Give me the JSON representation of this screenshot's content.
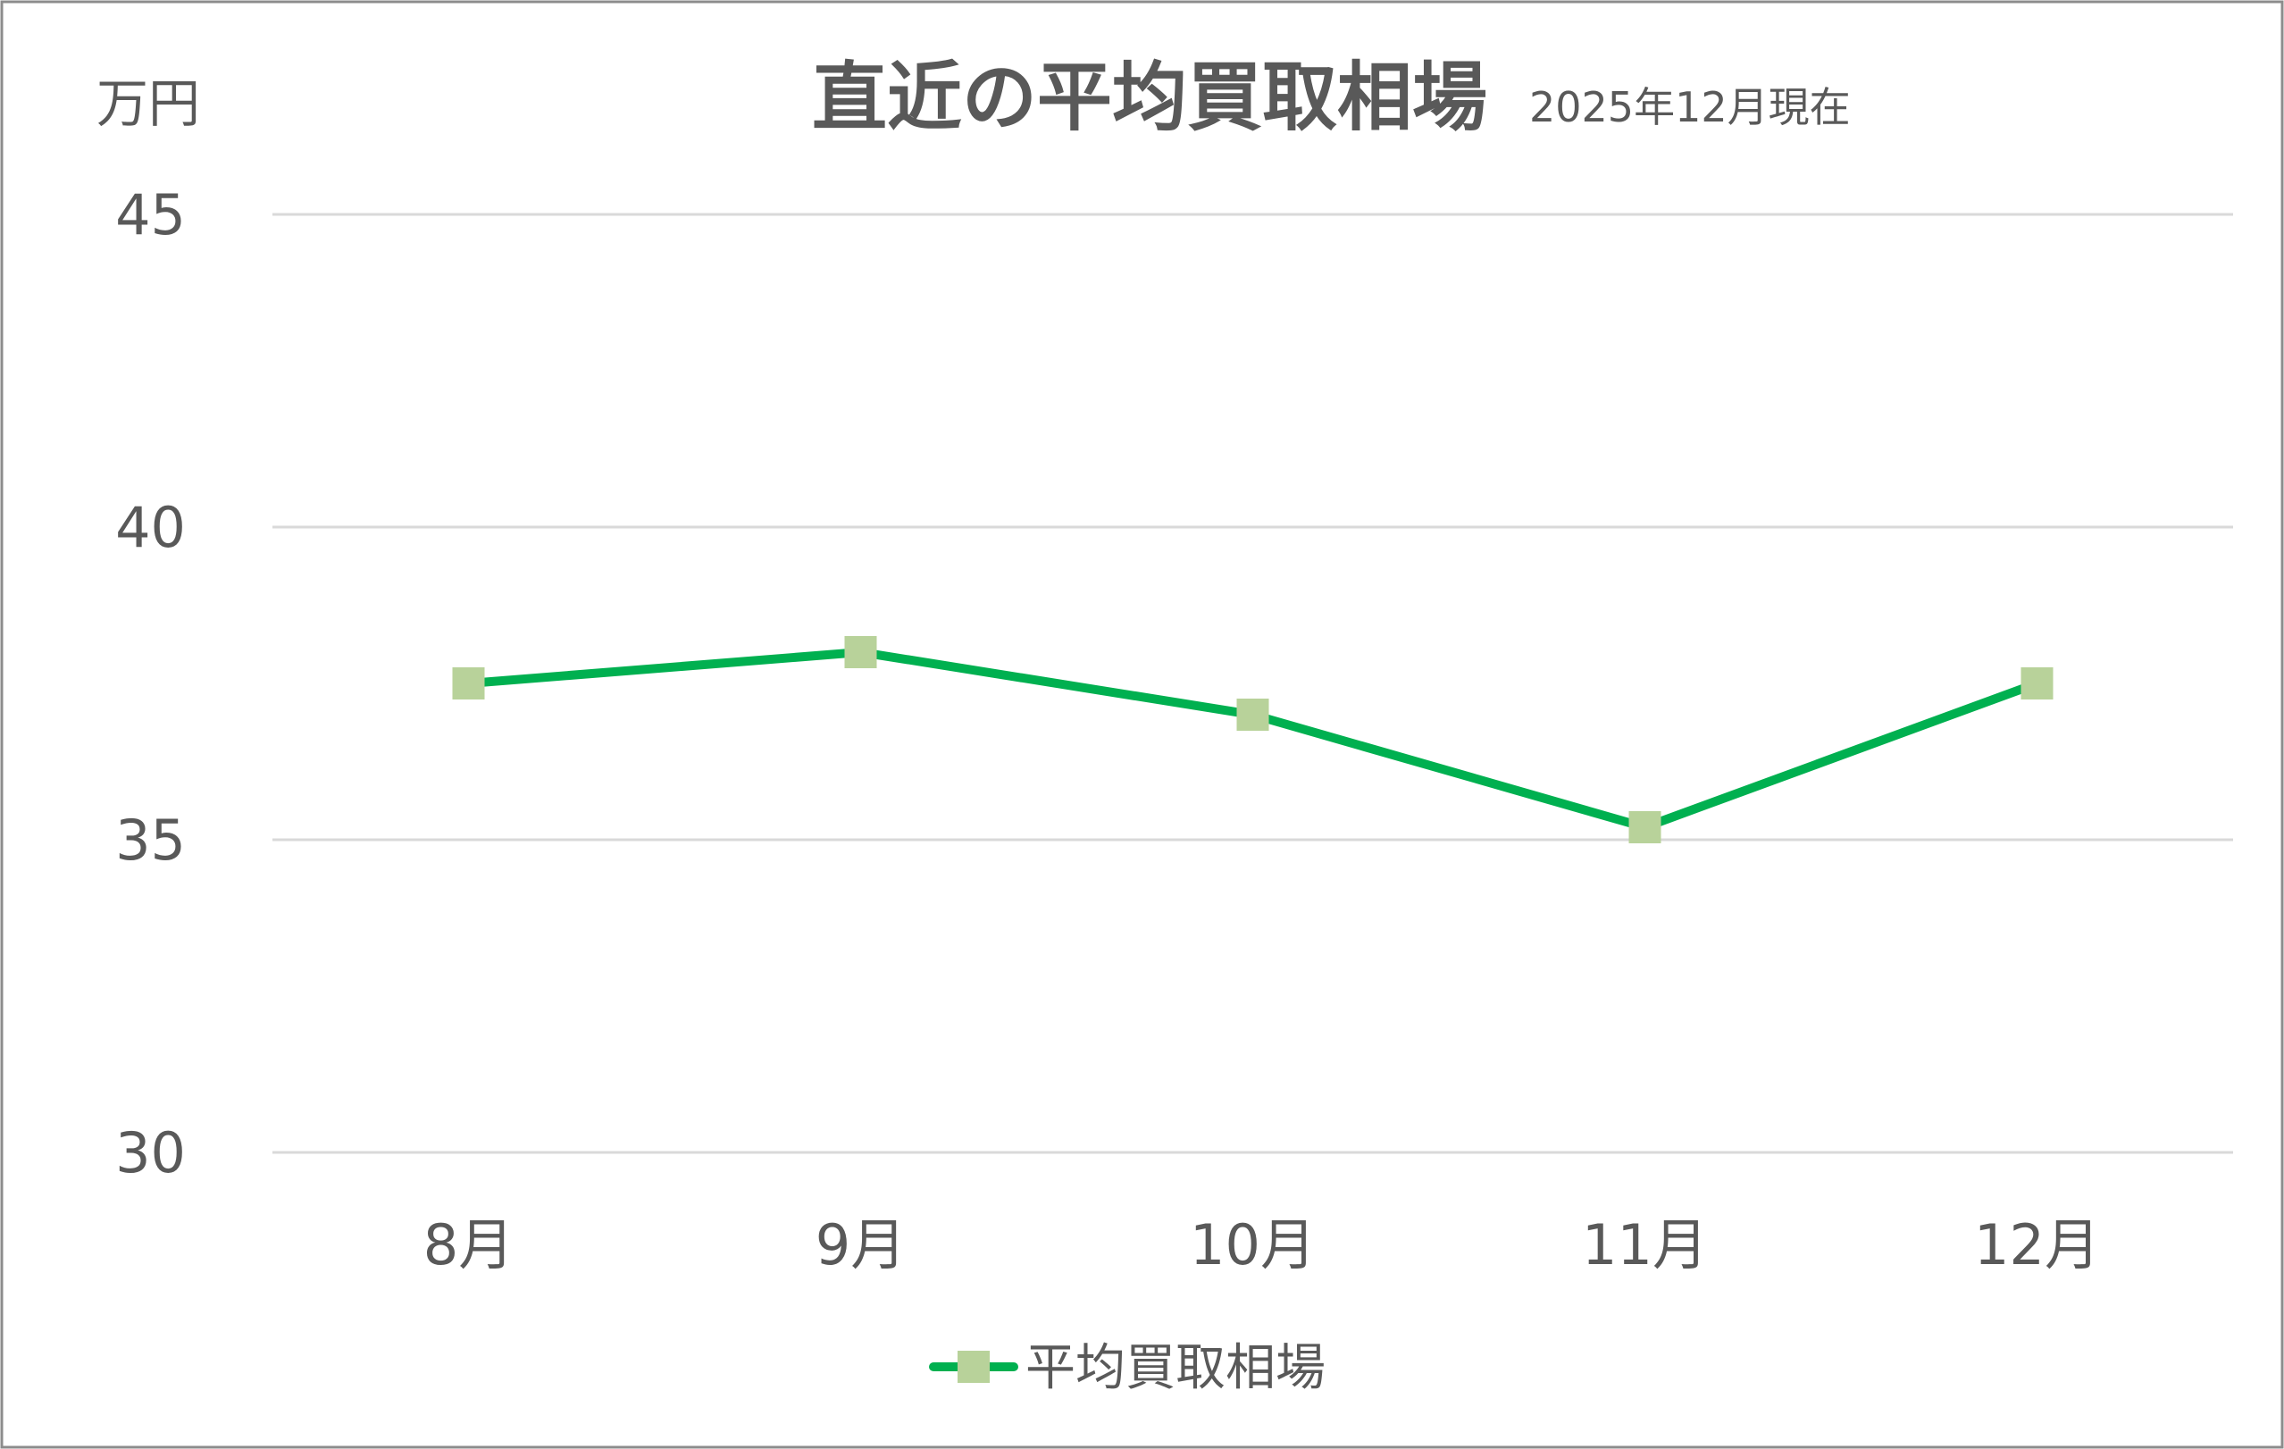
{
  "chart_data": {
    "type": "line",
    "title": "直近の平均買取相場",
    "subtitle": "2025年12月現在",
    "ylabel": "万円",
    "xlabel": "",
    "categories": [
      "8月",
      "9月",
      "10月",
      "11月",
      "12月"
    ],
    "series": [
      {
        "name": "平均買取相場",
        "values": [
          37.5,
          38.0,
          37.0,
          35.2,
          37.5
        ],
        "line_color": "#00b050",
        "marker_color": "#b8d29a",
        "marker": "square"
      }
    ],
    "ylim": [
      30,
      45
    ],
    "yticks": [
      "30",
      "35",
      "40",
      "45"
    ],
    "grid": true,
    "legend": "bottom",
    "colors": {
      "text": "#595959",
      "grid": "#d9d9d9",
      "border": "#8c8c8c"
    }
  }
}
